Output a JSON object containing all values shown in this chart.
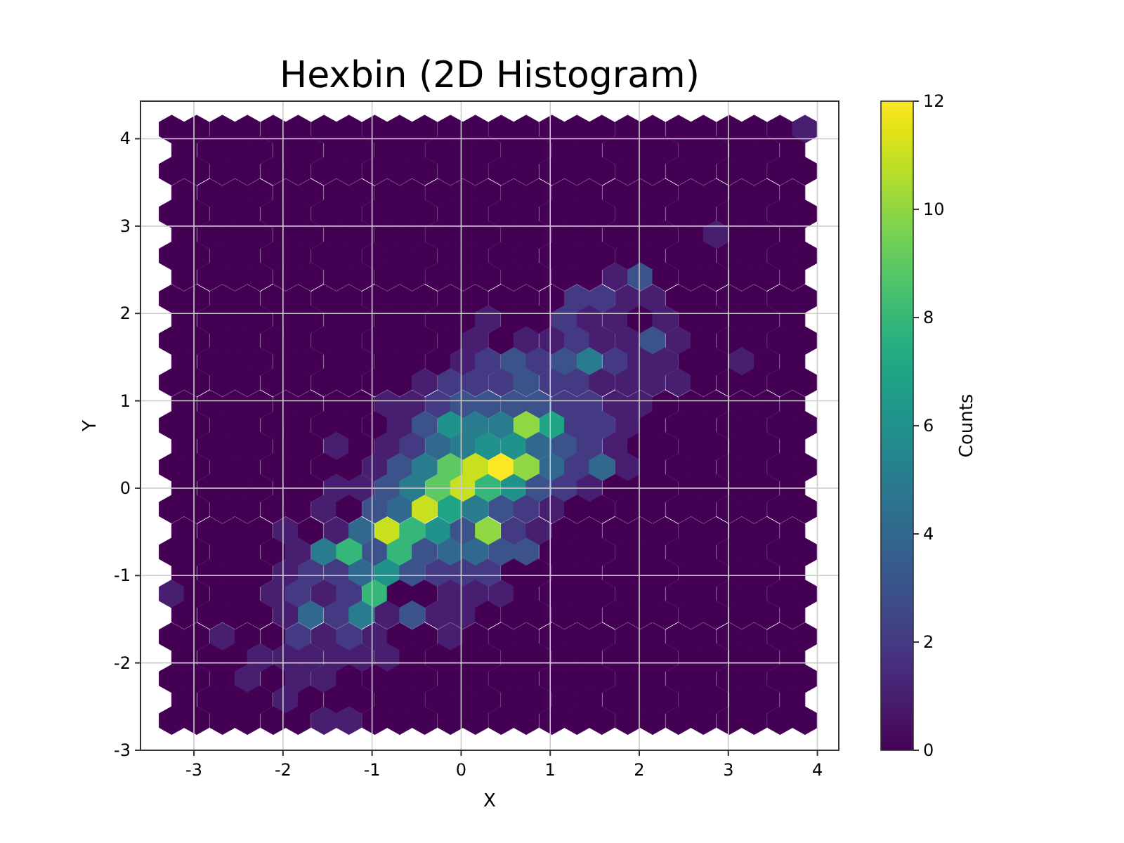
{
  "chart_data": {
    "type": "scatter",
    "title": "Hexbin (2D Histogram)",
    "xlabel": "X",
    "ylabel": "Y",
    "clabel": "Counts",
    "xlim": [
      -3.6,
      4.24
    ],
    "ylim": [
      -3,
      4.43
    ],
    "xticks": [
      -3,
      -2,
      -1,
      0,
      1,
      2,
      3,
      4
    ],
    "yticks": [
      -3,
      -2,
      -1,
      0,
      1,
      2,
      3,
      4
    ],
    "clim": [
      0,
      12
    ],
    "cticks": [
      0,
      2,
      4,
      6,
      8,
      10,
      12
    ],
    "grid": true,
    "x": [
      -3.25,
      -2.97,
      -2.68,
      -2.4,
      -2.11,
      -1.83,
      -1.54,
      -1.26,
      -0.97,
      -0.69,
      -0.41,
      -0.12,
      0.16,
      0.45,
      0.73,
      1.02,
      1.3,
      1.58,
      1.87,
      2.15,
      2.44,
      2.72,
      3.01,
      3.29,
      3.58,
      3.86,
      -3.11,
      -2.82,
      -2.54,
      -2.26,
      -1.97,
      -1.69,
      -1.4,
      -1.12,
      -0.83,
      -0.55,
      -0.26,
      0.02,
      0.3,
      0.59,
      0.87,
      1.16,
      1.44,
      1.73,
      2.01,
      2.29,
      2.58,
      2.86,
      3.15,
      3.43,
      3.72,
      -3.25,
      -2.97,
      -2.68,
      -2.4,
      -2.11,
      -1.83,
      -1.54,
      -1.26,
      -0.97,
      -0.69,
      -0.41,
      -0.12,
      0.16,
      0.45,
      0.73,
      1.02,
      1.3,
      1.58,
      1.87,
      2.15,
      2.44,
      2.72,
      3.01,
      3.29,
      3.58,
      3.86,
      -3.11,
      -2.82,
      -2.54,
      -2.26,
      -1.97,
      -1.69,
      -1.4,
      -1.12,
      -0.83,
      -0.55,
      -0.26,
      0.02,
      0.3,
      0.59,
      0.87,
      1.16,
      1.44,
      1.73,
      2.01,
      2.29,
      2.58,
      2.86,
      3.15,
      3.43,
      3.72,
      -3.25,
      -2.97,
      -2.68,
      -2.4,
      -2.11,
      -1.83,
      -1.54,
      -1.26,
      -0.97,
      -0.69,
      -0.41,
      -0.12,
      0.16,
      0.45,
      0.73,
      1.02,
      1.3,
      1.58,
      1.87,
      2.15,
      2.44,
      2.72,
      3.01,
      3.29,
      3.58,
      3.86,
      -3.11,
      -2.82,
      -2.54,
      -2.26,
      -1.97,
      -1.69,
      -1.4,
      -1.12,
      -0.83,
      -0.55,
      -0.26,
      0.02,
      0.3,
      0.59,
      0.87,
      1.16,
      1.44,
      1.73,
      2.01,
      2.29,
      2.58,
      2.86,
      3.15,
      3.43,
      3.72,
      -3.25,
      -2.97,
      -2.68,
      -2.4,
      -2.11,
      -1.83,
      -1.54,
      -1.26,
      -0.97,
      -0.69,
      -0.41,
      -0.12,
      0.16,
      0.45,
      0.73,
      1.02,
      1.3,
      1.58,
      1.87,
      2.15,
      2.44,
      2.72,
      3.01,
      3.29,
      3.58,
      3.86,
      -3.11,
      -2.82,
      -2.54,
      -2.26,
      -1.97,
      -1.69,
      -1.4,
      -1.12,
      -0.83,
      -0.55,
      -0.26,
      0.02,
      0.3,
      0.59,
      0.87,
      1.16,
      1.44,
      1.73,
      2.01,
      2.29,
      2.58,
      2.86,
      3.15,
      3.43,
      3.72,
      -3.25,
      -2.97,
      -2.68,
      -2.4,
      -2.11,
      -1.83,
      -1.54,
      -1.26,
      -0.97,
      -0.69,
      -0.41,
      -0.12,
      0.16,
      0.45,
      0.73,
      1.02,
      1.3,
      1.58,
      1.87,
      2.15,
      2.44,
      2.72,
      3.01,
      3.29,
      3.58,
      3.86,
      -3.11,
      -2.82,
      -2.54,
      -2.26,
      -1.97,
      -1.69,
      -1.4,
      -1.12,
      -0.83,
      -0.55,
      -0.26,
      0.02,
      0.3,
      0.59,
      0.87,
      1.16,
      1.44,
      1.73,
      2.01,
      2.29,
      2.58,
      2.86,
      3.15,
      3.43,
      3.72,
      -3.25,
      -2.97,
      -2.68,
      -2.4,
      -2.11,
      -1.83,
      -1.54,
      -1.26,
      -0.97,
      -0.69,
      -0.41,
      -0.12,
      0.16,
      0.45,
      0.73,
      1.02,
      1.3,
      1.58,
      1.87,
      2.15,
      2.44,
      2.72,
      3.01,
      3.29,
      3.58,
      3.86,
      -3.11,
      -2.82,
      -2.54,
      -2.26,
      -1.97,
      -1.69,
      -1.4,
      -1.12,
      -0.83,
      -0.55,
      -0.26,
      0.02,
      0.3,
      0.59,
      0.87,
      1.16,
      1.44,
      1.73,
      2.01,
      2.29,
      2.58,
      2.86,
      3.15,
      3.43,
      3.72,
      -3.25,
      -2.97,
      -2.68,
      -2.4,
      -2.11,
      -1.83,
      -1.54,
      -1.26,
      -0.97,
      -0.69,
      -0.41,
      -0.12,
      0.16,
      0.45,
      0.73,
      1.02,
      1.3,
      1.58,
      1.87,
      2.15,
      2.44,
      2.72,
      3.01,
      3.29,
      3.58,
      3.86,
      -3.11,
      -2.82,
      -2.54,
      -2.26,
      -1.97,
      -1.69,
      -1.4,
      -1.12,
      -0.83,
      -0.55,
      -0.26,
      0.02,
      0.3,
      0.59,
      0.87,
      1.16,
      1.44,
      1.73,
      2.01,
      2.29,
      2.58,
      2.86,
      3.15,
      3.43,
      3.72,
      -3.25,
      -2.97,
      -2.68,
      -2.4,
      -2.11,
      -1.83,
      -1.54,
      -1.26,
      -0.97,
      -0.69,
      -0.41,
      -0.12,
      0.16,
      0.45,
      0.73,
      1.02,
      1.3,
      1.58,
      1.87,
      2.15,
      2.44,
      2.72,
      3.01,
      3.29,
      3.58,
      3.86,
      -3.11,
      -2.82,
      -2.54,
      -2.26,
      -1.97,
      -1.69,
      -1.4,
      -1.12,
      -0.83,
      -0.55,
      -0.26,
      0.02,
      0.3,
      0.59,
      0.87,
      1.16,
      1.44,
      1.73,
      2.01,
      2.29,
      2.58,
      2.86,
      3.15,
      3.43,
      3.72,
      -3.25,
      -2.97,
      -2.68,
      -2.4,
      -2.11,
      -1.83,
      -1.54,
      -1.26,
      -0.97,
      -0.69,
      -0.41,
      -0.12,
      0.16,
      0.45,
      0.73,
      1.02,
      1.3,
      1.58,
      1.87,
      2.15,
      2.44,
      2.72,
      3.01,
      3.29,
      3.58,
      3.86,
      -3.11,
      -2.82,
      -2.54,
      -2.26,
      -1.97,
      -1.69,
      -1.4,
      -1.12,
      -0.83,
      -0.55,
      -0.26,
      0.02,
      0.3,
      0.59,
      0.87,
      1.16,
      1.44,
      1.73,
      2.01,
      2.29,
      2.58,
      2.86,
      3.15,
      3.43,
      3.72,
      -3.25,
      -2.97,
      -2.68,
      -2.4,
      -2.11,
      -1.83,
      -1.54,
      -1.26,
      -0.97,
      -0.69,
      -0.41,
      -0.12,
      0.16,
      0.45,
      0.73,
      1.02,
      1.3,
      1.58,
      1.87,
      2.15,
      2.44,
      2.72,
      3.01,
      3.29,
      3.58,
      3.86,
      -3.11,
      -2.82,
      -2.54,
      -2.26,
      -1.97,
      -1.69,
      -1.4,
      -1.12,
      -0.83,
      -0.55,
      -0.26,
      0.02,
      0.3,
      0.59,
      0.87,
      1.16,
      1.44,
      1.73,
      2.01,
      2.29,
      2.58,
      2.86,
      3.15,
      3.43,
      3.72,
      -3.25,
      -2.97,
      -2.68,
      -2.4,
      -2.11,
      -1.83,
      -1.54,
      -1.26,
      -0.97,
      -0.69,
      -0.41,
      -0.12,
      0.16,
      0.45,
      0.73,
      1.02,
      1.3,
      1.58,
      1.87,
      2.15,
      2.44,
      2.72,
      3.01,
      3.29,
      3.58,
      3.86,
      -3.11,
      -2.82,
      -2.54,
      -2.26,
      -1.97,
      -1.69,
      -1.4,
      -1.12,
      -0.83,
      -0.55,
      -0.26,
      0.02,
      0.3,
      0.59,
      0.87,
      1.16,
      1.44,
      1.73,
      2.01,
      2.29,
      2.58,
      2.86,
      3.15,
      3.43,
      3.72,
      -3.25,
      -2.97,
      -2.68,
      -2.4,
      -2.11,
      -1.83,
      -1.54,
      -1.26,
      -0.97,
      -0.69,
      -0.41,
      -0.12,
      0.16,
      0.45,
      0.73,
      1.02,
      1.3,
      1.58,
      1.87,
      2.15,
      2.44,
      2.72,
      3.01,
      3.29,
      3.58,
      3.86,
      -3.11,
      -2.82,
      -2.54,
      -2.26,
      -1.97,
      -1.69,
      -1.4,
      -1.12,
      -0.83,
      -0.55,
      -0.26,
      0.02,
      0.3,
      0.59,
      0.87,
      1.16,
      1.44,
      1.73,
      2.01,
      2.29,
      2.58,
      2.86,
      3.15,
      3.43,
      3.72,
      -3.25,
      -2.97,
      -2.68,
      -2.4,
      -2.11,
      -1.83,
      -1.54,
      -1.26,
      -0.97,
      -0.69,
      -0.41,
      -0.12,
      0.16,
      0.45,
      0.73,
      1.02,
      1.3,
      1.58,
      1.87,
      2.15,
      2.44,
      2.72,
      3.01,
      3.29,
      3.58,
      3.86,
      -3.11,
      -2.82,
      -2.54,
      -2.26,
      -1.97,
      -1.69,
      -1.4,
      -1.12,
      -0.83,
      -0.55,
      -0.26,
      0.02,
      0.3,
      0.59,
      0.87,
      1.16,
      1.44,
      1.73,
      2.01,
      2.29,
      2.58,
      2.86,
      3.15,
      3.43,
      3.72,
      -3.25,
      -2.97,
      -2.68,
      -2.4,
      -2.11,
      -1.83,
      -1.54,
      -1.26,
      -0.97,
      -0.69,
      -0.41,
      -0.12,
      0.16,
      0.45,
      0.73,
      1.02,
      1.3,
      1.58,
      1.87,
      2.15,
      2.44,
      2.72,
      3.01,
      3.29,
      3.58,
      3.86,
      -3.11,
      -2.82,
      -2.54,
      -2.26,
      -1.97,
      -1.69,
      -1.4,
      -1.12,
      -0.83,
      -0.55,
      -0.26,
      0.02,
      0.3,
      0.59,
      0.87,
      1.16,
      1.44,
      1.73,
      2.01,
      2.29,
      2.58,
      2.86,
      3.15,
      3.43,
      3.72,
      -3.25,
      -2.97,
      -2.68,
      -2.4,
      -2.11,
      -1.83,
      -1.54,
      -1.26,
      -0.97,
      -0.69,
      -0.41,
      -0.12,
      0.16,
      0.45,
      0.73,
      1.02,
      1.3,
      1.58,
      1.87,
      2.15,
      2.44,
      2.72,
      3.01,
      3.29,
      3.58,
      3.86
    ],
    "values": [
      4.11,
      4.11,
      4.11,
      4.11,
      4.11,
      4.11,
      4.11,
      4.11,
      4.11,
      4.11,
      4.11,
      4.11,
      4.11,
      4.11,
      4.11,
      4.11,
      4.11,
      4.11,
      4.11,
      4.11,
      4.11,
      4.11,
      4.11,
      4.11,
      4.11,
      4.11,
      3.87,
      3.87,
      3.87,
      3.87,
      3.87,
      3.87,
      3.87,
      3.87,
      3.87,
      3.87,
      3.87,
      3.87,
      3.87,
      3.87,
      3.87,
      3.87,
      3.87,
      3.87,
      3.87,
      3.87,
      3.87,
      3.87,
      3.87,
      3.87,
      3.87,
      3.63,
      3.63,
      3.63,
      3.63,
      3.63,
      3.63,
      3.63,
      3.63,
      3.63,
      3.63,
      3.63,
      3.63,
      3.63,
      3.63,
      3.63,
      3.63,
      3.63,
      3.63,
      3.63,
      3.63,
      3.63,
      3.63,
      3.63,
      3.63,
      3.63,
      3.63,
      3.38,
      3.38,
      3.38,
      3.38,
      3.38,
      3.38,
      3.38,
      3.38,
      3.38,
      3.38,
      3.38,
      3.38,
      3.38,
      3.38,
      3.38,
      3.38,
      3.38,
      3.38,
      3.38,
      3.38,
      3.38,
      3.38,
      3.38,
      3.38,
      3.38,
      3.14,
      3.14,
      3.14,
      3.14,
      3.14,
      3.14,
      3.14,
      3.14,
      3.14,
      3.14,
      3.14,
      3.14,
      3.14,
      3.14,
      3.14,
      3.14,
      3.14,
      3.14,
      3.14,
      3.14,
      3.14,
      3.14,
      3.14,
      3.14,
      3.14,
      3.14,
      2.9,
      2.9,
      2.9,
      2.9,
      2.9,
      2.9,
      2.9,
      2.9,
      2.9,
      2.9,
      2.9,
      2.9,
      2.9,
      2.9,
      2.9,
      2.9,
      2.9,
      2.9,
      2.9,
      2.9,
      2.9,
      2.9,
      2.9,
      2.9,
      2.9,
      2.66,
      2.66,
      2.66,
      2.66,
      2.66,
      2.66,
      2.66,
      2.66,
      2.66,
      2.66,
      2.66,
      2.66,
      2.66,
      2.66,
      2.66,
      2.66,
      2.66,
      2.66,
      2.66,
      2.66,
      2.66,
      2.66,
      2.66,
      2.66,
      2.66,
      2.66,
      2.42,
      2.42,
      2.42,
      2.42,
      2.42,
      2.42,
      2.42,
      2.42,
      2.42,
      2.42,
      2.42,
      2.42,
      2.42,
      2.42,
      2.42,
      2.42,
      2.42,
      2.42,
      2.42,
      2.42,
      2.42,
      2.42,
      2.42,
      2.42,
      2.42,
      2.17,
      2.17,
      2.17,
      2.17,
      2.17,
      2.17,
      2.17,
      2.17,
      2.17,
      2.17,
      2.17,
      2.17,
      2.17,
      2.17,
      2.17,
      2.17,
      2.17,
      2.17,
      2.17,
      2.17,
      2.17,
      2.17,
      2.17,
      2.17,
      2.17,
      2.17,
      1.93,
      1.93,
      1.93,
      1.93,
      1.93,
      1.93,
      1.93,
      1.93,
      1.93,
      1.93,
      1.93,
      1.93,
      1.93,
      1.93,
      1.93,
      1.93,
      1.93,
      1.93,
      1.93,
      1.93,
      1.93,
      1.93,
      1.93,
      1.93,
      1.93,
      1.69,
      1.69,
      1.69,
      1.69,
      1.69,
      1.69,
      1.69,
      1.69,
      1.69,
      1.69,
      1.69,
      1.69,
      1.69,
      1.69,
      1.69,
      1.69,
      1.69,
      1.69,
      1.69,
      1.69,
      1.69,
      1.69,
      1.69,
      1.69,
      1.69,
      1.69,
      1.45,
      1.45,
      1.45,
      1.45,
      1.45,
      1.45,
      1.45,
      1.45,
      1.45,
      1.45,
      1.45,
      1.45,
      1.45,
      1.45,
      1.45,
      1.45,
      1.45,
      1.45,
      1.45,
      1.45,
      1.45,
      1.45,
      1.45,
      1.45,
      1.45,
      1.21,
      1.21,
      1.21,
      1.21,
      1.21,
      1.21,
      1.21,
      1.21,
      1.21,
      1.21,
      1.21,
      1.21,
      1.21,
      1.21,
      1.21,
      1.21,
      1.21,
      1.21,
      1.21,
      1.21,
      1.21,
      1.21,
      1.21,
      1.21,
      1.21,
      1.21,
      0.96,
      0.96,
      0.96,
      0.96,
      0.96,
      0.96,
      0.96,
      0.96,
      0.96,
      0.96,
      0.96,
      0.96,
      0.96,
      0.96,
      0.96,
      0.96,
      0.96,
      0.96,
      0.96,
      0.96,
      0.96,
      0.96,
      0.96,
      0.96,
      0.96,
      0.72,
      0.72,
      0.72,
      0.72,
      0.72,
      0.72,
      0.72,
      0.72,
      0.72,
      0.72,
      0.72,
      0.72,
      0.72,
      0.72,
      0.72,
      0.72,
      0.72,
      0.72,
      0.72,
      0.72,
      0.72,
      0.72,
      0.72,
      0.72,
      0.72,
      0.72,
      0.48,
      0.48,
      0.48,
      0.48,
      0.48,
      0.48,
      0.48,
      0.48,
      0.48,
      0.48,
      0.48,
      0.48,
      0.48,
      0.48,
      0.48,
      0.48,
      0.48,
      0.48,
      0.48,
      0.48,
      0.48,
      0.48,
      0.48,
      0.48,
      0.48,
      0.24,
      0.24,
      0.24,
      0.24,
      0.24,
      0.24,
      0.24,
      0.24,
      0.24,
      0.24,
      0.24,
      0.24,
      0.24,
      0.24,
      0.24,
      0.24,
      0.24,
      0.24,
      0.24,
      0.24,
      0.24,
      0.24,
      0.24,
      0.24,
      0.24,
      0.24,
      0,
      0,
      0,
      0,
      0,
      0,
      0,
      0,
      0,
      0,
      0,
      0,
      0,
      0,
      0,
      0,
      0,
      0,
      0,
      0,
      0,
      0,
      0,
      0,
      0,
      -0.24,
      -0.24,
      -0.24,
      -0.24,
      -0.24,
      -0.24,
      -0.24,
      -0.24,
      -0.24,
      -0.24,
      -0.24,
      -0.24,
      -0.24,
      -0.24,
      -0.24,
      -0.24,
      -0.24,
      -0.24,
      -0.24,
      -0.24,
      -0.24,
      -0.24,
      -0.24,
      -0.24,
      -0.24,
      -0.24,
      -0.49,
      -0.49,
      -0.49,
      -0.49,
      -0.49,
      -0.49,
      -0.49,
      -0.49,
      -0.49,
      -0.49,
      -0.49,
      -0.49,
      -0.49,
      -0.49,
      -0.49,
      -0.49,
      -0.49,
      -0.49,
      -0.49,
      -0.49,
      -0.49,
      -0.49,
      -0.49,
      -0.49,
      -0.49,
      -0.73,
      -0.73,
      -0.73,
      -0.73,
      -0.73,
      -0.73,
      -0.73,
      -0.73,
      -0.73,
      -0.73,
      -0.73,
      -0.73,
      -0.73,
      -0.73,
      -0.73,
      -0.73,
      -0.73,
      -0.73,
      -0.73,
      -0.73,
      -0.73,
      -0.73,
      -0.73,
      -0.73,
      -0.73,
      -0.73,
      -0.97,
      -0.97,
      -0.97,
      -0.97,
      -0.97,
      -0.97,
      -0.97,
      -0.97,
      -0.97,
      -0.97,
      -0.97,
      -0.97,
      -0.97,
      -0.97,
      -0.97,
      -0.97,
      -0.97,
      -0.97,
      -0.97,
      -0.97,
      -0.97,
      -0.97,
      -0.97,
      -0.97,
      -0.97,
      -1.21,
      -1.21,
      -1.21,
      -1.21,
      -1.21,
      -1.21,
      -1.21,
      -1.21,
      -1.21,
      -1.21,
      -1.21,
      -1.21,
      -1.21,
      -1.21,
      -1.21,
      -1.21,
      -1.21,
      -1.21,
      -1.21,
      -1.21,
      -1.21,
      -1.21,
      -1.21,
      -1.21,
      -1.21,
      -1.21,
      -1.45,
      -1.45,
      -1.45,
      -1.45,
      -1.45,
      -1.45,
      -1.45,
      -1.45,
      -1.45,
      -1.45,
      -1.45,
      -1.45,
      -1.45,
      -1.45,
      -1.45,
      -1.45,
      -1.45,
      -1.45,
      -1.45,
      -1.45,
      -1.45,
      -1.45,
      -1.45,
      -1.45,
      -1.45,
      -1.7,
      -1.7,
      -1.7,
      -1.7,
      -1.7,
      -1.7,
      -1.7,
      -1.7,
      -1.7,
      -1.7,
      -1.7,
      -1.7,
      -1.7,
      -1.7,
      -1.7,
      -1.7,
      -1.7,
      -1.7,
      -1.7,
      -1.7,
      -1.7,
      -1.7,
      -1.7,
      -1.7,
      -1.7,
      -1.7,
      -1.94,
      -1.94,
      -1.94,
      -1.94,
      -1.94,
      -1.94,
      -1.94,
      -1.94,
      -1.94,
      -1.94,
      -1.94,
      -1.94,
      -1.94,
      -1.94,
      -1.94,
      -1.94,
      -1.94,
      -1.94,
      -1.94,
      -1.94,
      -1.94,
      -1.94,
      -1.94,
      -1.94,
      -1.94,
      -2.18,
      -2.18,
      -2.18,
      -2.18,
      -2.18,
      -2.18,
      -2.18,
      -2.18,
      -2.18,
      -2.18,
      -2.18,
      -2.18,
      -2.18,
      -2.18,
      -2.18,
      -2.18,
      -2.18,
      -2.18,
      -2.18,
      -2.18,
      -2.18,
      -2.18,
      -2.18,
      -2.18,
      -2.18,
      -2.18,
      -2.42,
      -2.42,
      -2.42,
      -2.42,
      -2.42,
      -2.42,
      -2.42,
      -2.42,
      -2.42,
      -2.42,
      -2.42,
      -2.42,
      -2.42,
      -2.42,
      -2.42,
      -2.42,
      -2.42,
      -2.42,
      -2.42,
      -2.42,
      -2.42,
      -2.42,
      -2.42,
      -2.42,
      -2.42,
      -2.66,
      -2.66,
      -2.66,
      -2.66,
      -2.66,
      -2.66,
      -2.66,
      -2.66,
      -2.66,
      -2.66,
      -2.66,
      -2.66,
      -2.66,
      -2.66,
      -2.66,
      -2.66,
      -2.66,
      -2.66,
      -2.66,
      -2.66,
      -2.66,
      -2.66,
      -2.66,
      -2.66,
      -2.66,
      -2.66
    ],
    "cvalues": [
      0,
      0,
      0,
      0,
      0,
      0,
      0,
      0,
      0,
      0,
      0,
      0,
      0,
      0,
      0,
      0,
      0,
      0,
      0,
      0,
      0,
      0,
      0,
      0,
      0,
      1,
      0,
      0,
      0,
      0,
      0,
      0,
      0,
      0,
      0,
      0,
      0,
      0,
      0,
      0,
      0,
      0,
      0,
      0,
      0,
      0,
      0,
      0,
      0,
      0,
      0,
      0,
      0,
      0,
      0,
      0,
      0,
      0,
      0,
      0,
      0,
      0,
      0,
      0,
      0,
      0,
      0,
      0,
      0,
      0,
      0,
      0,
      0,
      0,
      0,
      0,
      0,
      0,
      0,
      0,
      0,
      0,
      0,
      0,
      0,
      0,
      0,
      0,
      0,
      0,
      0,
      0,
      0,
      0,
      0,
      0,
      0,
      0,
      0,
      0,
      0,
      0,
      0,
      0,
      0,
      0,
      0,
      0,
      0,
      0,
      0,
      0,
      0,
      0,
      0,
      0,
      0,
      0,
      0,
      0,
      0,
      0,
      0,
      0,
      0,
      0,
      0,
      0,
      0,
      0,
      0,
      0,
      0,
      0,
      0,
      0,
      0,
      0,
      0,
      0,
      0,
      0,
      0,
      0,
      0,
      0,
      0,
      0,
      0,
      1,
      0,
      0,
      0,
      0,
      0,
      0,
      0,
      0,
      0,
      0,
      0,
      0,
      0,
      0,
      0,
      0,
      0,
      0,
      0,
      0,
      0,
      0,
      0,
      0,
      0,
      0,
      0,
      0,
      0,
      0,
      0,
      0,
      0,
      0,
      0,
      0,
      0,
      0,
      0,
      0,
      0,
      0,
      0,
      0,
      0,
      0,
      1,
      3,
      0,
      0,
      0,
      0,
      0,
      0,
      0,
      0,
      0,
      0,
      0,
      0,
      0,
      0,
      0,
      0,
      0,
      0,
      0,
      0,
      0,
      0,
      2,
      2,
      1,
      1,
      0,
      0,
      0,
      0,
      0,
      0,
      0,
      0,
      0,
      0,
      0,
      0,
      0,
      0,
      0,
      0,
      0,
      0,
      1,
      0,
      0,
      2,
      1,
      1,
      0,
      1,
      0,
      0,
      0,
      0,
      0,
      0,
      0,
      0,
      0,
      0,
      0,
      0,
      0,
      0,
      0,
      0,
      0,
      1,
      0,
      1,
      1,
      2,
      1,
      1,
      3,
      1,
      0,
      0,
      0,
      0,
      0,
      0,
      0,
      0,
      0,
      0,
      0,
      0,
      0,
      0,
      0,
      0,
      1,
      2,
      3,
      2,
      3,
      5,
      2,
      1,
      1,
      0,
      0,
      1,
      0,
      0,
      0,
      0,
      0,
      0,
      0,
      0,
      0,
      0,
      0,
      0,
      1,
      2,
      2,
      2,
      3,
      2,
      2,
      1,
      1,
      1,
      1,
      0,
      0,
      0,
      0,
      0,
      0,
      0,
      0,
      0,
      0,
      0,
      0,
      0,
      1,
      1,
      2,
      3,
      3,
      3,
      3,
      2,
      2,
      1,
      1,
      0,
      0,
      0,
      0,
      0,
      0,
      0,
      0,
      0,
      0,
      0,
      0,
      0,
      0,
      0,
      1,
      3,
      6,
      5,
      5,
      10,
      7,
      2,
      2,
      1,
      0,
      0,
      0,
      0,
      0,
      0,
      0,
      0,
      0,
      0,
      0,
      0,
      0,
      1,
      0,
      1,
      2,
      4,
      5,
      6,
      6,
      4,
      3,
      2,
      1,
      0,
      0,
      0,
      0,
      0,
      0,
      0,
      0,
      0,
      0,
      0,
      0,
      0,
      0,
      0,
      1,
      3,
      5,
      9,
      11,
      12,
      10,
      4,
      2,
      4,
      1,
      0,
      0,
      0,
      0,
      0,
      0,
      0,
      0,
      0,
      0,
      0,
      0,
      0,
      1,
      1,
      3,
      5,
      9,
      11,
      8,
      6,
      3,
      2,
      1,
      0,
      0,
      0,
      0,
      0,
      0,
      0,
      0,
      0,
      0,
      0,
      0,
      0,
      0,
      1,
      0,
      3,
      4,
      11,
      7,
      5,
      3,
      2,
      1,
      0,
      0,
      0,
      0,
      0,
      0,
      0,
      0,
      0,
      0,
      0,
      0,
      0,
      0,
      1,
      0,
      1,
      4,
      11,
      8,
      6,
      3,
      10,
      2,
      1,
      0,
      0,
      0,
      0,
      0,
      0,
      0,
      0,
      0,
      0,
      0,
      0,
      0,
      0,
      0,
      1,
      5,
      8,
      3,
      8,
      3,
      4,
      4,
      3,
      3,
      0,
      0,
      0,
      0,
      0,
      0,
      0,
      0,
      0,
      0,
      0,
      0,
      0,
      0,
      0,
      1,
      2,
      2,
      4,
      6,
      3,
      2,
      2,
      2,
      0,
      0,
      0,
      0,
      0,
      0,
      0,
      0,
      0,
      0,
      0,
      0,
      1,
      0,
      0,
      0,
      1,
      2,
      1,
      2,
      8,
      0,
      0,
      1,
      1,
      1,
      0,
      0,
      0,
      0,
      0,
      0,
      0,
      0,
      0,
      0,
      0,
      0,
      0,
      0,
      0,
      0,
      1,
      4,
      2,
      5,
      1,
      3,
      1,
      1,
      0,
      0,
      0,
      0,
      0,
      0,
      0,
      0,
      0,
      0,
      0,
      0,
      0,
      0,
      0,
      1,
      0,
      0,
      2,
      1,
      2,
      1,
      0,
      0,
      1,
      0,
      0,
      0,
      0,
      0,
      0,
      0,
      0,
      0,
      0,
      0,
      0,
      0,
      0,
      0,
      0,
      0,
      1,
      1,
      1,
      1,
      1,
      1,
      0,
      0,
      0,
      0,
      0,
      0,
      0,
      0,
      0,
      0,
      0,
      0,
      0,
      0,
      0,
      0,
      0,
      0,
      0,
      1,
      0,
      1,
      1,
      0,
      0,
      0,
      0,
      0,
      0,
      0,
      0,
      0,
      0,
      0,
      0,
      0,
      0,
      0,
      0,
      0,
      0,
      0,
      0,
      0,
      0,
      0,
      1,
      0,
      0,
      0,
      0,
      0,
      0,
      0,
      0,
      0,
      0,
      0,
      0,
      0,
      0,
      0,
      0,
      0,
      0,
      0,
      0,
      0,
      0,
      0,
      0,
      0,
      0,
      1,
      1,
      0,
      0,
      0,
      0,
      0,
      0,
      0,
      0,
      0,
      0,
      0,
      0,
      0,
      0,
      0,
      0,
      0,
      0
    ]
  }
}
